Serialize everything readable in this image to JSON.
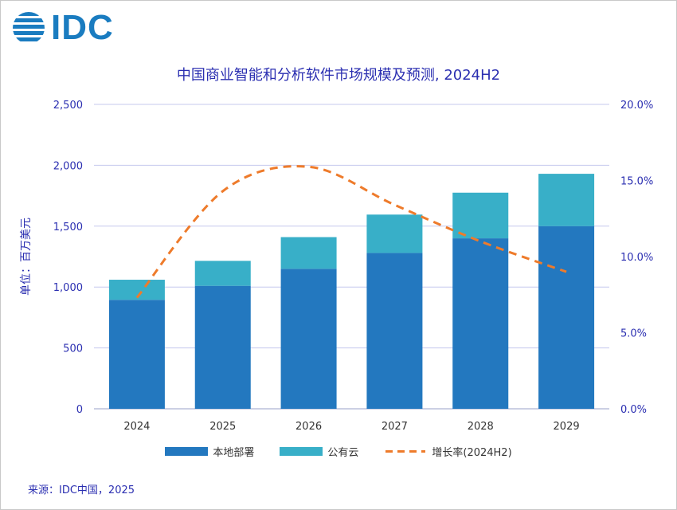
{
  "logo": {
    "text": "IDC"
  },
  "footer": {
    "source": "来源：IDC中国，2025"
  },
  "chart_data": {
    "type": "bar",
    "stacked": true,
    "title": "中国商业智能和分析软件市场规模及预测, 2024H2",
    "ylabel": "单位：百万美元",
    "ylim": [
      0,
      2500
    ],
    "yticks": [
      "0",
      "500",
      "1,000",
      "1,500",
      "2,000",
      "2,500"
    ],
    "y2lim": [
      0,
      20
    ],
    "y2ticks": [
      "0.0%",
      "5.0%",
      "10.0%",
      "15.0%",
      "20.0%"
    ],
    "grid": true,
    "legend_position": "bottom",
    "categories": [
      "2024",
      "2025",
      "2026",
      "2027",
      "2028",
      "2029"
    ],
    "series": [
      {
        "name": "本地部署",
        "kind": "bar",
        "color": "#2378bf",
        "values": [
          895,
          1010,
          1150,
          1280,
          1400,
          1500
        ]
      },
      {
        "name": "公有云",
        "kind": "bar",
        "color": "#38afc8",
        "values": [
          165,
          205,
          260,
          315,
          375,
          430
        ]
      },
      {
        "name": "增长率(2024H2)",
        "kind": "line",
        "axis": "right",
        "color": "#ee7b2b",
        "values": [
          7.3,
          14.3,
          15.9,
          13.4,
          11.0,
          9.0
        ]
      }
    ]
  }
}
